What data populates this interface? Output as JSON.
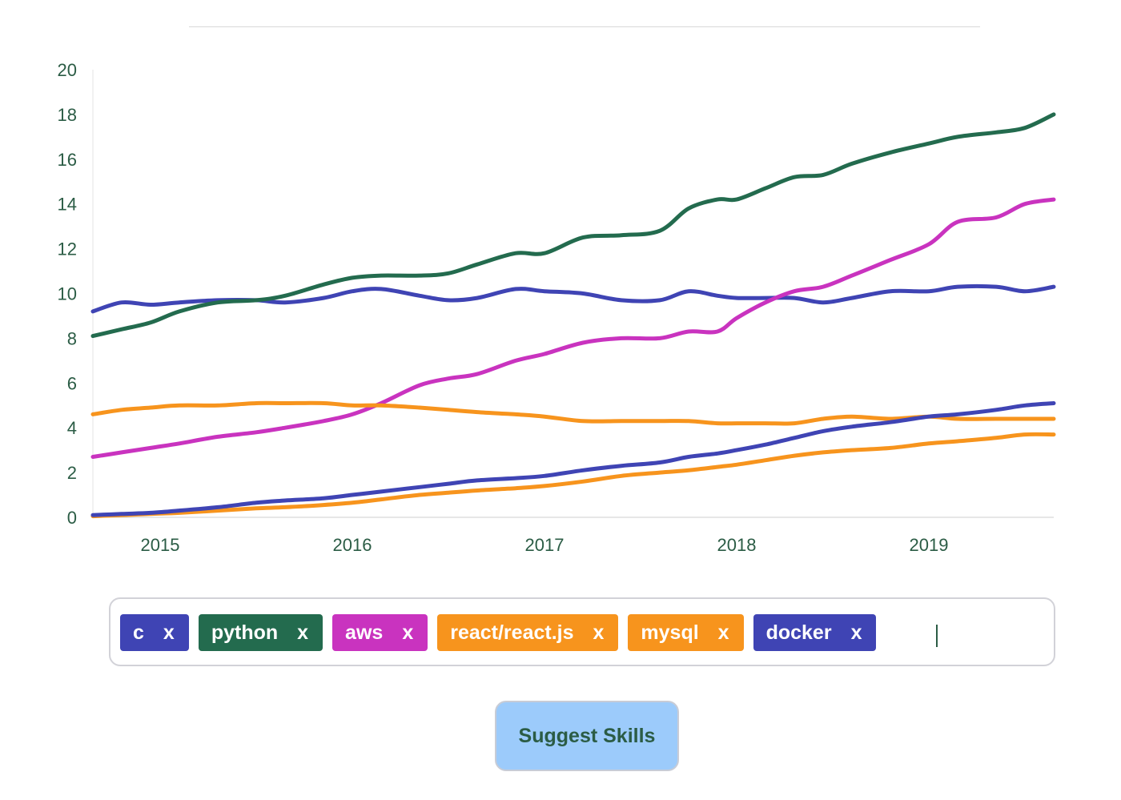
{
  "chart_data": {
    "type": "line",
    "title": "",
    "xlabel": "",
    "ylabel": "",
    "xlim": [
      2014.65,
      2019.65
    ],
    "ylim": [
      0,
      20
    ],
    "yticks": [
      0,
      2,
      4,
      6,
      8,
      10,
      12,
      14,
      16,
      18,
      20
    ],
    "xticks": [
      2015,
      2016,
      2017,
      2018,
      2019
    ],
    "xtick_labels": [
      "2015",
      "2016",
      "2017",
      "2018",
      "2019"
    ],
    "ytick_labels": [
      "0",
      "2",
      "4",
      "6",
      "8",
      "10",
      "12",
      "14",
      "16",
      "18",
      "20"
    ],
    "grid": false,
    "legend": "none",
    "series": [
      {
        "color": "#3f44b4",
        "x": [
          2014.65,
          2014.8,
          2014.95,
          2015.1,
          2015.3,
          2015.5,
          2015.65,
          2015.85,
          2016.0,
          2016.15,
          2016.35,
          2016.5,
          2016.65,
          2016.85,
          2017.0,
          2017.2,
          2017.4,
          2017.6,
          2017.75,
          2017.9,
          2018.0,
          2018.15,
          2018.3,
          2018.45,
          2018.6,
          2018.8,
          2019.0,
          2019.15,
          2019.35,
          2019.5,
          2019.65
        ],
        "y": [
          9.2,
          9.6,
          9.5,
          9.6,
          9.7,
          9.7,
          9.6,
          9.8,
          10.1,
          10.2,
          9.9,
          9.7,
          9.8,
          10.2,
          10.1,
          10.0,
          9.7,
          9.7,
          10.1,
          9.9,
          9.8,
          9.8,
          9.8,
          9.6,
          9.8,
          10.1,
          10.1,
          10.3,
          10.3,
          10.1,
          10.3
        ]
      },
      {
        "color": "#236b4e",
        "x": [
          2014.65,
          2014.8,
          2014.95,
          2015.1,
          2015.3,
          2015.5,
          2015.65,
          2015.85,
          2016.0,
          2016.15,
          2016.35,
          2016.5,
          2016.65,
          2016.85,
          2017.0,
          2017.2,
          2017.4,
          2017.6,
          2017.75,
          2017.9,
          2018.0,
          2018.15,
          2018.3,
          2018.45,
          2018.6,
          2018.8,
          2019.0,
          2019.15,
          2019.35,
          2019.5,
          2019.65
        ],
        "y": [
          8.1,
          8.4,
          8.7,
          9.2,
          9.6,
          9.7,
          9.9,
          10.4,
          10.7,
          10.8,
          10.8,
          10.9,
          11.3,
          11.8,
          11.8,
          12.5,
          12.6,
          12.8,
          13.8,
          14.2,
          14.2,
          14.7,
          15.2,
          15.3,
          15.8,
          16.3,
          16.7,
          17.0,
          17.2,
          17.4,
          18.0
        ]
      },
      {
        "color": "#c933bf",
        "x": [
          2014.65,
          2014.8,
          2014.95,
          2015.1,
          2015.3,
          2015.5,
          2015.65,
          2015.85,
          2016.0,
          2016.15,
          2016.35,
          2016.5,
          2016.65,
          2016.85,
          2017.0,
          2017.2,
          2017.4,
          2017.6,
          2017.75,
          2017.9,
          2018.0,
          2018.15,
          2018.3,
          2018.45,
          2018.6,
          2018.8,
          2019.0,
          2019.15,
          2019.35,
          2019.5,
          2019.65
        ],
        "y": [
          2.7,
          2.9,
          3.1,
          3.3,
          3.6,
          3.8,
          4.0,
          4.3,
          4.6,
          5.1,
          5.9,
          6.2,
          6.4,
          7.0,
          7.3,
          7.8,
          8.0,
          8.0,
          8.3,
          8.3,
          8.9,
          9.6,
          10.1,
          10.3,
          10.8,
          11.5,
          12.2,
          13.2,
          13.4,
          14.0,
          14.2
        ]
      },
      {
        "color": "#f7941d",
        "x": [
          2014.65,
          2014.8,
          2014.95,
          2015.1,
          2015.3,
          2015.5,
          2015.65,
          2015.85,
          2016.0,
          2016.15,
          2016.35,
          2016.5,
          2016.65,
          2016.85,
          2017.0,
          2017.2,
          2017.4,
          2017.6,
          2017.75,
          2017.9,
          2018.0,
          2018.15,
          2018.3,
          2018.45,
          2018.6,
          2018.8,
          2019.0,
          2019.15,
          2019.35,
          2019.5,
          2019.65
        ],
        "y": [
          4.6,
          4.8,
          4.9,
          5.0,
          5.0,
          5.1,
          5.1,
          5.1,
          5.0,
          5.0,
          4.9,
          4.8,
          4.7,
          4.6,
          4.5,
          4.3,
          4.3,
          4.3,
          4.3,
          4.2,
          4.2,
          4.2,
          4.2,
          4.4,
          4.5,
          4.4,
          4.5,
          4.4,
          4.4,
          4.4,
          4.4
        ]
      },
      {
        "color": "#f7941d",
        "x": [
          2014.65,
          2014.8,
          2014.95,
          2015.1,
          2015.3,
          2015.5,
          2015.65,
          2015.85,
          2016.0,
          2016.15,
          2016.35,
          2016.5,
          2016.65,
          2016.85,
          2017.0,
          2017.2,
          2017.4,
          2017.6,
          2017.75,
          2017.9,
          2018.0,
          2018.15,
          2018.3,
          2018.45,
          2018.6,
          2018.8,
          2019.0,
          2019.15,
          2019.35,
          2019.5,
          2019.65
        ],
        "y": [
          0.05,
          0.1,
          0.15,
          0.2,
          0.3,
          0.4,
          0.45,
          0.55,
          0.65,
          0.8,
          1.0,
          1.1,
          1.2,
          1.3,
          1.4,
          1.6,
          1.85,
          2.0,
          2.1,
          2.25,
          2.35,
          2.55,
          2.75,
          2.9,
          3.0,
          3.1,
          3.3,
          3.4,
          3.55,
          3.7,
          3.7
        ]
      },
      {
        "color": "#3f44b4",
        "x": [
          2014.65,
          2014.8,
          2014.95,
          2015.1,
          2015.3,
          2015.5,
          2015.65,
          2015.85,
          2016.0,
          2016.15,
          2016.35,
          2016.5,
          2016.65,
          2016.85,
          2017.0,
          2017.2,
          2017.4,
          2017.6,
          2017.75,
          2017.9,
          2018.0,
          2018.15,
          2018.3,
          2018.45,
          2018.6,
          2018.8,
          2019.0,
          2019.15,
          2019.35,
          2019.5,
          2019.65
        ],
        "y": [
          0.1,
          0.15,
          0.2,
          0.3,
          0.45,
          0.65,
          0.75,
          0.85,
          1.0,
          1.15,
          1.35,
          1.5,
          1.65,
          1.75,
          1.85,
          2.1,
          2.3,
          2.45,
          2.7,
          2.85,
          3.0,
          3.25,
          3.55,
          3.85,
          4.05,
          4.25,
          4.5,
          4.6,
          4.8,
          5.0,
          5.1
        ]
      }
    ]
  },
  "skills": {
    "tags": [
      {
        "label": "c",
        "remove_label": "x",
        "color": "#3f44b4",
        "icon": "remove-x-icon"
      },
      {
        "label": "python",
        "remove_label": "x",
        "color": "#236b4e",
        "icon": "remove-x-icon"
      },
      {
        "label": "aws",
        "remove_label": "x",
        "color": "#c933bf",
        "icon": "remove-x-icon"
      },
      {
        "label": "react/react.js",
        "remove_label": "x",
        "color": "#f7941d",
        "icon": "remove-x-icon"
      },
      {
        "label": "mysql",
        "remove_label": "x",
        "color": "#f7941d",
        "icon": "remove-x-icon"
      },
      {
        "label": "docker",
        "remove_label": "x",
        "color": "#3f44b4",
        "icon": "remove-x-icon"
      }
    ],
    "input_value": ""
  },
  "actions": {
    "suggest_label": "Suggest Skills"
  },
  "colors": {
    "axis_text": "#2b5c45",
    "button_bg": "#9ccbfb"
  }
}
